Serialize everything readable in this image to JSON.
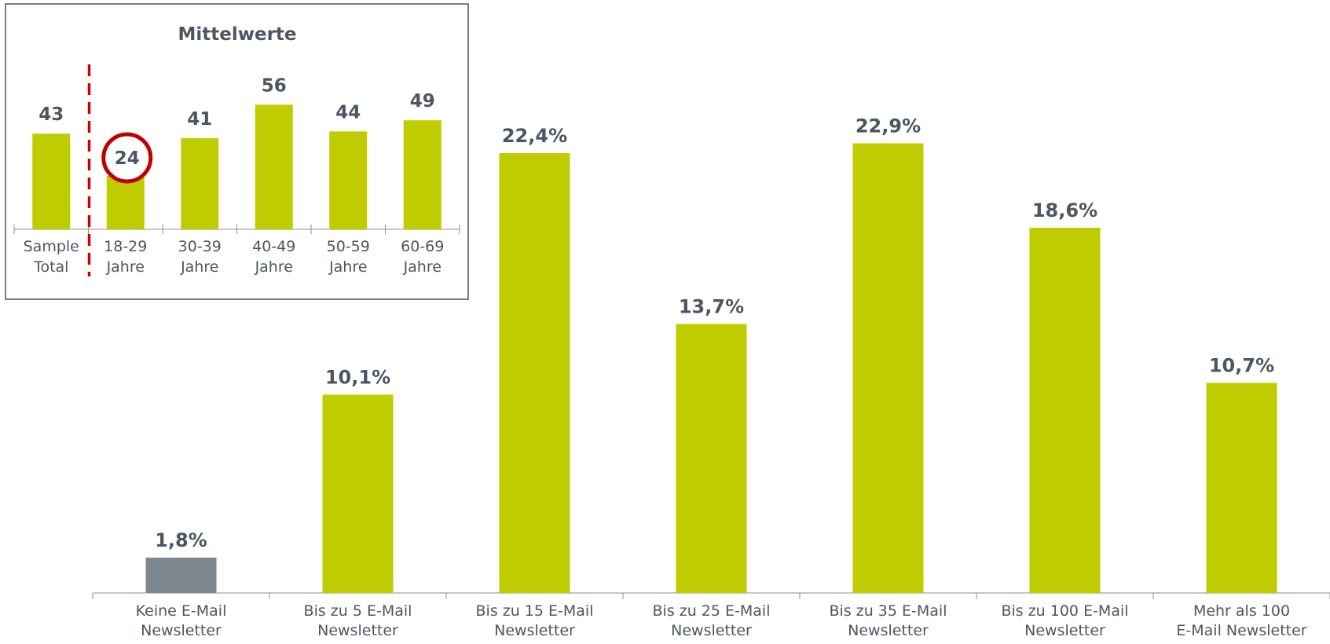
{
  "colors": {
    "bar": "#bfcd00",
    "bar_highlight_gray": "#7f8790",
    "text": "#4d5563",
    "axis": "#8a8f96",
    "separator": "#cc0000",
    "circle": "#c00000",
    "inset_border": "#4d5563"
  },
  "chart_data": [
    {
      "type": "bar",
      "categories": [
        [
          "Keine E-Mail",
          "Newsletter"
        ],
        [
          "Bis zu 5 E-Mail",
          "Newsletter"
        ],
        [
          "Bis zu 15 E-Mail",
          "Newsletter"
        ],
        [
          "Bis zu 25 E-Mail",
          "Newsletter"
        ],
        [
          "Bis zu 35 E-Mail",
          "Newsletter"
        ],
        [
          "Bis zu 100 E-Mail",
          "Newsletter"
        ],
        [
          "Mehr als 100",
          "E-Mail Newsletter"
        ]
      ],
      "values": [
        1.8,
        10.1,
        22.4,
        13.7,
        22.9,
        18.6,
        10.7
      ],
      "value_labels": [
        "1,8%",
        "10,1%",
        "22,4%",
        "13,7%",
        "22,9%",
        "18,6%",
        "10,7%"
      ],
      "bar_colors": [
        "gray",
        "green",
        "green",
        "green",
        "green",
        "green",
        "green"
      ],
      "ylim": [
        0,
        25
      ],
      "grid": false,
      "xlabel": "",
      "ylabel": ""
    },
    {
      "type": "bar",
      "title": "Mittelwerte",
      "categories": [
        [
          "Sample",
          "Total"
        ],
        [
          "18-29",
          "Jahre"
        ],
        [
          "30-39",
          "Jahre"
        ],
        [
          "40-49",
          "Jahre"
        ],
        [
          "50-59",
          "Jahre"
        ],
        [
          "60-69",
          "Jahre"
        ]
      ],
      "values": [
        43,
        24,
        41,
        56,
        44,
        49
      ],
      "value_labels": [
        "43",
        "24",
        "41",
        "56",
        "44",
        "49"
      ],
      "highlighted_index": 1,
      "separator_after_index": 0,
      "ylim": [
        0,
        60
      ],
      "grid": false,
      "legend": "none"
    }
  ]
}
